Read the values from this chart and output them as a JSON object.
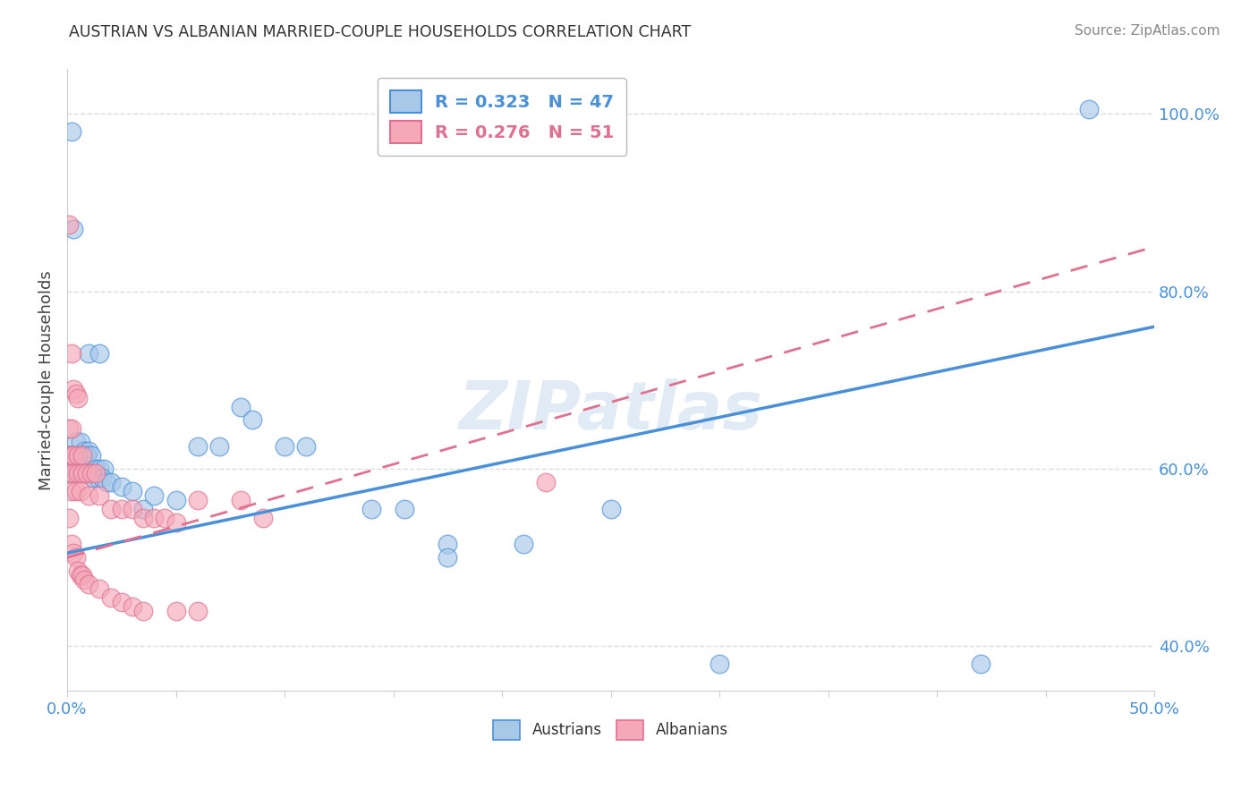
{
  "title": "AUSTRIAN VS ALBANIAN MARRIED-COUPLE HOUSEHOLDS CORRELATION CHART",
  "source": "Source: ZipAtlas.com",
  "ylabel": "Married-couple Households",
  "watermark": "ZIPatlas",
  "austrians_R": "0.323",
  "austrians_N": "47",
  "albanians_R": "0.276",
  "albanians_N": "51",
  "austrians_color": "#a8c8e8",
  "albanians_color": "#f4a8b8",
  "austrians_line_color": "#4a90d9",
  "albanians_line_color": "#e07090",
  "austrians_scatter": [
    [
      0.002,
      0.98
    ],
    [
      0.003,
      0.87
    ],
    [
      0.01,
      0.73
    ],
    [
      0.015,
      0.73
    ],
    [
      0.004,
      0.63
    ],
    [
      0.006,
      0.63
    ],
    [
      0.008,
      0.62
    ],
    [
      0.01,
      0.62
    ],
    [
      0.001,
      0.615
    ],
    [
      0.002,
      0.615
    ],
    [
      0.003,
      0.615
    ],
    [
      0.005,
      0.615
    ],
    [
      0.007,
      0.615
    ],
    [
      0.009,
      0.615
    ],
    [
      0.011,
      0.615
    ],
    [
      0.013,
      0.6
    ],
    [
      0.015,
      0.6
    ],
    [
      0.017,
      0.6
    ],
    [
      0.002,
      0.595
    ],
    [
      0.004,
      0.595
    ],
    [
      0.006,
      0.595
    ],
    [
      0.008,
      0.595
    ],
    [
      0.012,
      0.59
    ],
    [
      0.014,
      0.59
    ],
    [
      0.016,
      0.59
    ],
    [
      0.018,
      0.585
    ],
    [
      0.02,
      0.585
    ],
    [
      0.025,
      0.58
    ],
    [
      0.03,
      0.575
    ],
    [
      0.035,
      0.555
    ],
    [
      0.04,
      0.57
    ],
    [
      0.05,
      0.565
    ],
    [
      0.06,
      0.625
    ],
    [
      0.07,
      0.625
    ],
    [
      0.08,
      0.67
    ],
    [
      0.085,
      0.655
    ],
    [
      0.1,
      0.625
    ],
    [
      0.11,
      0.625
    ],
    [
      0.14,
      0.555
    ],
    [
      0.155,
      0.555
    ],
    [
      0.175,
      0.515
    ],
    [
      0.175,
      0.5
    ],
    [
      0.21,
      0.515
    ],
    [
      0.25,
      0.555
    ],
    [
      0.3,
      0.38
    ],
    [
      0.42,
      0.38
    ],
    [
      0.47,
      1.005
    ]
  ],
  "albanians_scatter": [
    [
      0.001,
      0.875
    ],
    [
      0.002,
      0.73
    ],
    [
      0.003,
      0.69
    ],
    [
      0.004,
      0.685
    ],
    [
      0.005,
      0.68
    ],
    [
      0.001,
      0.645
    ],
    [
      0.002,
      0.645
    ],
    [
      0.001,
      0.615
    ],
    [
      0.002,
      0.615
    ],
    [
      0.003,
      0.615
    ],
    [
      0.005,
      0.615
    ],
    [
      0.007,
      0.615
    ],
    [
      0.001,
      0.595
    ],
    [
      0.003,
      0.595
    ],
    [
      0.005,
      0.595
    ],
    [
      0.007,
      0.595
    ],
    [
      0.009,
      0.595
    ],
    [
      0.011,
      0.595
    ],
    [
      0.013,
      0.595
    ],
    [
      0.002,
      0.575
    ],
    [
      0.004,
      0.575
    ],
    [
      0.006,
      0.575
    ],
    [
      0.01,
      0.57
    ],
    [
      0.015,
      0.57
    ],
    [
      0.02,
      0.555
    ],
    [
      0.025,
      0.555
    ],
    [
      0.03,
      0.555
    ],
    [
      0.035,
      0.545
    ],
    [
      0.04,
      0.545
    ],
    [
      0.045,
      0.545
    ],
    [
      0.05,
      0.54
    ],
    [
      0.06,
      0.565
    ],
    [
      0.08,
      0.565
    ],
    [
      0.09,
      0.545
    ],
    [
      0.001,
      0.545
    ],
    [
      0.002,
      0.515
    ],
    [
      0.003,
      0.505
    ],
    [
      0.004,
      0.5
    ],
    [
      0.005,
      0.485
    ],
    [
      0.006,
      0.48
    ],
    [
      0.007,
      0.48
    ],
    [
      0.008,
      0.475
    ],
    [
      0.01,
      0.47
    ],
    [
      0.015,
      0.465
    ],
    [
      0.02,
      0.455
    ],
    [
      0.025,
      0.45
    ],
    [
      0.03,
      0.445
    ],
    [
      0.035,
      0.44
    ],
    [
      0.05,
      0.44
    ],
    [
      0.06,
      0.44
    ],
    [
      0.22,
      0.585
    ]
  ],
  "xlim": [
    0.0,
    0.5
  ],
  "ylim": [
    0.35,
    1.05
  ],
  "ytick_vals": [
    0.4,
    0.6,
    0.8,
    1.0
  ],
  "ytick_labels": [
    "40.0%",
    "60.0%",
    "80.0%",
    "100.0%"
  ],
  "background_color": "#ffffff",
  "grid_color": "#dddddd"
}
